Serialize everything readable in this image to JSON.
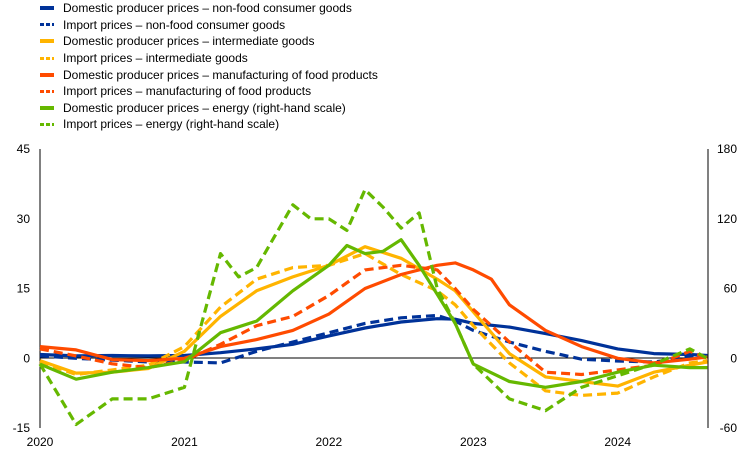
{
  "chart_data": {
    "type": "line",
    "title": "",
    "xlabel": "",
    "ylabel": "",
    "ylabel_right": "",
    "x_ticks": [
      "2020",
      "2021",
      "2022",
      "2023",
      "2024"
    ],
    "ylim_left": [
      -15,
      45
    ],
    "yticks_left": [
      "45",
      "30",
      "15",
      "0",
      "-15"
    ],
    "ylim_right": [
      -60,
      180
    ],
    "yticks_right": [
      "180",
      "120",
      "60",
      "0",
      "-60"
    ],
    "xlim": [
      2020.0,
      2024.625
    ],
    "grid": "zero line only",
    "legend_position": "top-left",
    "series": [
      {
        "name": "Domestic producer prices – non-food consumer goods",
        "color": "#003299",
        "style": "solid",
        "axis": "left",
        "points": [
          [
            2020.0,
            0.8
          ],
          [
            2020.25,
            0.5
          ],
          [
            2020.5,
            0.6
          ],
          [
            2020.75,
            0.5
          ],
          [
            2021.0,
            0.6
          ],
          [
            2021.25,
            1.2
          ],
          [
            2021.5,
            2.0
          ],
          [
            2021.75,
            3.0
          ],
          [
            2022.0,
            4.8
          ],
          [
            2022.25,
            6.5
          ],
          [
            2022.5,
            7.8
          ],
          [
            2022.75,
            8.5
          ],
          [
            2022.875,
            8.4
          ],
          [
            2023.0,
            7.5
          ],
          [
            2023.25,
            6.7
          ],
          [
            2023.5,
            5.3
          ],
          [
            2023.75,
            3.8
          ],
          [
            2024.0,
            2.0
          ],
          [
            2024.25,
            1.0
          ],
          [
            2024.5,
            0.8
          ],
          [
            2024.62,
            0.6
          ]
        ]
      },
      {
        "name": "Import prices – non-food consumer goods",
        "color": "#003299",
        "style": "dotted",
        "axis": "left",
        "points": [
          [
            2020.0,
            0.5
          ],
          [
            2020.25,
            0.0
          ],
          [
            2020.5,
            -0.4
          ],
          [
            2020.75,
            -0.8
          ],
          [
            2021.0,
            -0.8
          ],
          [
            2021.25,
            -1.0
          ],
          [
            2021.5,
            1.5
          ],
          [
            2021.75,
            3.5
          ],
          [
            2022.0,
            5.5
          ],
          [
            2022.25,
            7.5
          ],
          [
            2022.5,
            8.7
          ],
          [
            2022.75,
            9.2
          ],
          [
            2022.875,
            8.0
          ],
          [
            2023.0,
            6.0
          ],
          [
            2023.25,
            3.5
          ],
          [
            2023.5,
            1.5
          ],
          [
            2023.75,
            -0.2
          ],
          [
            2024.0,
            -0.6
          ],
          [
            2024.25,
            -0.8
          ],
          [
            2024.5,
            0.3
          ],
          [
            2024.62,
            0.5
          ]
        ]
      },
      {
        "name": "Domestic producer prices – intermediate goods",
        "color": "#ffb400",
        "style": "solid",
        "axis": "left",
        "points": [
          [
            2020.0,
            -0.5
          ],
          [
            2020.25,
            -3.2
          ],
          [
            2020.5,
            -3.0
          ],
          [
            2020.75,
            -2.2
          ],
          [
            2021.0,
            1.5
          ],
          [
            2021.25,
            9.0
          ],
          [
            2021.5,
            14.5
          ],
          [
            2021.75,
            17.5
          ],
          [
            2022.0,
            20.0
          ],
          [
            2022.25,
            24.0
          ],
          [
            2022.5,
            21.5
          ],
          [
            2022.75,
            17.0
          ],
          [
            2022.875,
            14.5
          ],
          [
            2023.0,
            10.0
          ],
          [
            2023.25,
            1.0
          ],
          [
            2023.5,
            -4.0
          ],
          [
            2023.75,
            -5.0
          ],
          [
            2024.0,
            -6.0
          ],
          [
            2024.25,
            -3.0
          ],
          [
            2024.5,
            -1.5
          ],
          [
            2024.62,
            -0.8
          ]
        ]
      },
      {
        "name": "Import prices – intermediate goods",
        "color": "#ffb400",
        "style": "dotted",
        "axis": "left",
        "points": [
          [
            2020.0,
            -0.8
          ],
          [
            2020.25,
            -3.5
          ],
          [
            2020.5,
            -2.5
          ],
          [
            2020.75,
            -1.5
          ],
          [
            2021.0,
            2.5
          ],
          [
            2021.25,
            11.0
          ],
          [
            2021.5,
            17.0
          ],
          [
            2021.75,
            19.5
          ],
          [
            2022.0,
            20.0
          ],
          [
            2022.25,
            22.5
          ],
          [
            2022.5,
            18.0
          ],
          [
            2022.75,
            14.5
          ],
          [
            2022.875,
            11.5
          ],
          [
            2023.0,
            7.0
          ],
          [
            2023.25,
            -1.0
          ],
          [
            2023.5,
            -7.0
          ],
          [
            2023.75,
            -8.0
          ],
          [
            2024.0,
            -7.5
          ],
          [
            2024.25,
            -4.0
          ],
          [
            2024.5,
            -1.0
          ],
          [
            2024.62,
            -0.5
          ]
        ]
      },
      {
        "name": "Domestic producer prices – manufacturing of food products",
        "color": "#ff4b00",
        "style": "solid",
        "axis": "left",
        "points": [
          [
            2020.0,
            2.5
          ],
          [
            2020.25,
            1.8
          ],
          [
            2020.5,
            -0.3
          ],
          [
            2020.75,
            -0.5
          ],
          [
            2021.0,
            0.0
          ],
          [
            2021.25,
            2.5
          ],
          [
            2021.5,
            4.0
          ],
          [
            2021.75,
            6.0
          ],
          [
            2022.0,
            9.5
          ],
          [
            2022.25,
            15.0
          ],
          [
            2022.5,
            18.0
          ],
          [
            2022.75,
            20.0
          ],
          [
            2022.875,
            20.5
          ],
          [
            2023.0,
            19.0
          ],
          [
            2023.125,
            17.0
          ],
          [
            2023.25,
            11.5
          ],
          [
            2023.5,
            6.0
          ],
          [
            2023.75,
            2.5
          ],
          [
            2024.0,
            0.0
          ],
          [
            2024.25,
            -1.0
          ],
          [
            2024.5,
            -0.2
          ],
          [
            2024.62,
            0.3
          ]
        ]
      },
      {
        "name": "Import prices – manufacturing of food products",
        "color": "#ff4b00",
        "style": "dotted",
        "axis": "left",
        "points": [
          [
            2020.0,
            2.0
          ],
          [
            2020.25,
            0.5
          ],
          [
            2020.5,
            -1.2
          ],
          [
            2020.75,
            -2.0
          ],
          [
            2021.0,
            -0.5
          ],
          [
            2021.25,
            3.0
          ],
          [
            2021.5,
            7.0
          ],
          [
            2021.75,
            9.0
          ],
          [
            2022.0,
            13.5
          ],
          [
            2022.25,
            19.0
          ],
          [
            2022.5,
            20.0
          ],
          [
            2022.75,
            19.0
          ],
          [
            2022.875,
            15.0
          ],
          [
            2023.0,
            10.5
          ],
          [
            2023.25,
            3.5
          ],
          [
            2023.5,
            -3.0
          ],
          [
            2023.75,
            -3.5
          ],
          [
            2024.0,
            -2.5
          ],
          [
            2024.25,
            -1.5
          ],
          [
            2024.5,
            1.5
          ],
          [
            2024.62,
            0.0
          ]
        ]
      },
      {
        "name": "Domestic producer prices – energy (right-hand scale)",
        "color": "#65b800",
        "style": "solid",
        "axis": "right",
        "points": [
          [
            2020.0,
            -5
          ],
          [
            2020.25,
            -18
          ],
          [
            2020.5,
            -12
          ],
          [
            2020.75,
            -8
          ],
          [
            2021.0,
            -3
          ],
          [
            2021.25,
            22
          ],
          [
            2021.5,
            32
          ],
          [
            2021.75,
            58
          ],
          [
            2022.0,
            80
          ],
          [
            2022.125,
            97
          ],
          [
            2022.25,
            90
          ],
          [
            2022.375,
            92
          ],
          [
            2022.5,
            102
          ],
          [
            2022.625,
            80
          ],
          [
            2022.75,
            55
          ],
          [
            2022.875,
            30
          ],
          [
            2023.0,
            -5
          ],
          [
            2023.25,
            -20
          ],
          [
            2023.5,
            -25
          ],
          [
            2023.75,
            -20
          ],
          [
            2024.0,
            -12
          ],
          [
            2024.25,
            -6
          ],
          [
            2024.5,
            -8
          ],
          [
            2024.62,
            -8
          ]
        ]
      },
      {
        "name": "Import prices – energy (right-hand scale)",
        "color": "#65b800",
        "style": "dotted",
        "axis": "right",
        "points": [
          [
            2020.0,
            -5
          ],
          [
            2020.25,
            -57
          ],
          [
            2020.5,
            -35
          ],
          [
            2020.75,
            -35
          ],
          [
            2021.0,
            -25
          ],
          [
            2021.25,
            90
          ],
          [
            2021.375,
            70
          ],
          [
            2021.5,
            78
          ],
          [
            2021.75,
            132
          ],
          [
            2021.875,
            120
          ],
          [
            2022.0,
            120
          ],
          [
            2022.125,
            110
          ],
          [
            2022.25,
            145
          ],
          [
            2022.375,
            130
          ],
          [
            2022.5,
            112
          ],
          [
            2022.625,
            125
          ],
          [
            2022.75,
            60
          ],
          [
            2022.875,
            30
          ],
          [
            2023.0,
            -5
          ],
          [
            2023.25,
            -35
          ],
          [
            2023.5,
            -45
          ],
          [
            2023.75,
            -25
          ],
          [
            2024.0,
            -15
          ],
          [
            2024.25,
            -5
          ],
          [
            2024.5,
            8
          ],
          [
            2024.62,
            0
          ]
        ]
      }
    ]
  }
}
